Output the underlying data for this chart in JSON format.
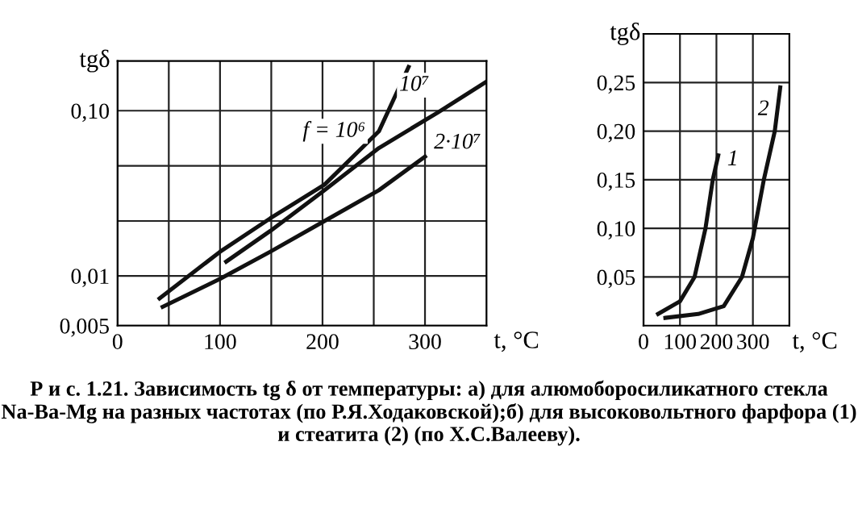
{
  "chart_data": [
    {
      "type": "line",
      "ylabel": "tgδ",
      "xlabel": "t, °C",
      "log": "y",
      "grid": true,
      "legend": false,
      "marker": "none",
      "line_style": "solid",
      "xlim": [
        0,
        360
      ],
      "ylim": [
        0.005,
        0.2
      ],
      "xticks": [
        0,
        {
          "value": 50,
          "label": null
        },
        100,
        {
          "value": 150,
          "label": null
        },
        200,
        {
          "value": 250,
          "label": null
        },
        300
      ],
      "yticks": [
        {
          "value": 0.005,
          "label": "0,005"
        },
        {
          "value": 0.01,
          "label": "0,01"
        },
        {
          "value": 0.0215,
          "label": null
        },
        {
          "value": 0.0464,
          "label": null
        },
        {
          "value": 0.1,
          "label": "0,10"
        }
      ],
      "series": [
        {
          "color": "#111111",
          "x": [
            41,
            100,
            149,
            202,
            255,
            284
          ],
          "values": [
            0.0073,
            0.014,
            0.0223,
            0.0357,
            0.075,
            0.184
          ]
        },
        {
          "color": "#111111",
          "x": [
            106,
            149,
            202,
            255,
            313,
            360
          ],
          "values": [
            0.0122,
            0.0187,
            0.033,
            0.0594,
            0.098,
            0.15
          ]
        },
        {
          "color": "#111111",
          "x": [
            44,
            100,
            149,
            202,
            255,
            300
          ],
          "values": [
            0.0065,
            0.0096,
            0.014,
            0.0215,
            0.033,
            0.0527
          ]
        }
      ],
      "annotations": [
        {
          "text": "f = 10⁶",
          "x": 255,
          "y": 0.075
        },
        {
          "text": "10⁷",
          "x": 313,
          "y": 0.098
        },
        {
          "text": "2·10⁷",
          "x": 300,
          "y": 0.0527
        },
        "Р и с. 1.21. Зависимость tg δ от температуры: а) для алюмоборосиликатного стекла Na-Ba-Mg на разных частотах (по Р.Я.Ходаковской);б) для высоковольтного фарфора (1) и стеатита (2) (по Х.С.Валееву)."
      ]
    },
    {
      "type": "line",
      "ylabel": "tgδ",
      "xlabel": "t, °C",
      "grid": true,
      "legend": false,
      "marker": "none",
      "line_style": "solid",
      "xlim": [
        0,
        400
      ],
      "ylim": [
        0,
        0.3
      ],
      "xticks": [
        0,
        100,
        200,
        300
      ],
      "yticks": [
        {
          "value": 0.05,
          "label": "0,05"
        },
        {
          "value": 0.1,
          "label": "0,10"
        },
        {
          "value": 0.15,
          "label": "0,15"
        },
        {
          "value": 0.2,
          "label": "0,20"
        },
        {
          "value": 0.25,
          "label": "0,25"
        }
      ],
      "series": [
        {
          "color": "#111111",
          "x": [
            40,
            100,
            140,
            170,
            190,
            205
          ],
          "values": [
            0.012,
            0.025,
            0.05,
            0.1,
            0.15,
            0.175
          ]
        },
        {
          "color": "#111111",
          "x": [
            60,
            150,
            220,
            270,
            300,
            330,
            360,
            375
          ],
          "values": [
            0.008,
            0.012,
            0.02,
            0.05,
            0.09,
            0.15,
            0.2,
            0.245
          ]
        }
      ],
      "annotations": [
        {
          "text": "1",
          "x": 205,
          "y": 0.175
        },
        {
          "text": "2",
          "x": 375,
          "y": 0.245
        }
      ]
    }
  ]
}
